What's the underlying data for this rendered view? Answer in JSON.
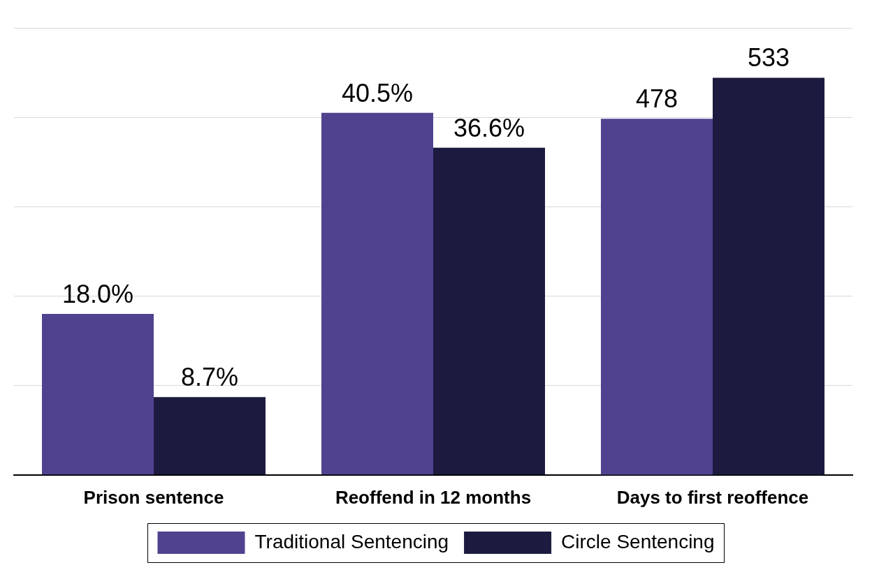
{
  "chart_data": {
    "type": "bar",
    "categories": [
      "Prison sentence",
      "Reoffend in 12 months",
      "Days to first reoffence"
    ],
    "series": [
      {
        "name": "Traditional Sentencing",
        "color": "#51428f",
        "values": [
          18.0,
          40.5,
          null
        ],
        "value_labels": [
          "18.0%",
          "40.5%",
          null
        ]
      },
      {
        "name": "Circle Sentencing",
        "color": "#1c1b3f",
        "values": [
          8.7,
          36.6,
          null
        ],
        "value_labels": [
          "8.7%",
          "36.6%",
          null
        ]
      },
      {
        "name": "Traditional Sentencing",
        "color": "#51428f",
        "values": [
          null,
          null,
          478
        ],
        "axis": "y2"
      },
      {
        "name": "Circle Sentencing",
        "color": "#1c1b3f",
        "values": [
          null,
          null,
          533
        ],
        "axis": "y2"
      }
    ],
    "ylim": [
      0,
      50
    ],
    "yticks": [
      0,
      10,
      20,
      30,
      40,
      50
    ],
    "y2lim": [
      0,
      600
    ],
    "y2ticks": [
      0,
      120,
      240,
      360,
      480,
      600
    ],
    "grid": true,
    "legend": "bottom",
    "data_labels": true,
    "tick_labels": "x"
  }
}
